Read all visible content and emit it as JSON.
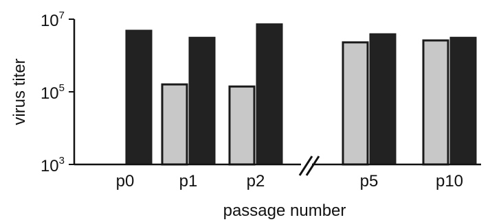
{
  "chart_data": {
    "type": "bar",
    "categories": [
      "p0",
      "p1",
      "p2",
      "p5",
      "p10"
    ],
    "series": [
      {
        "values": [
          null,
          160000,
          140000,
          2300000,
          2600000
        ],
        "color": "#c8c8c8"
      },
      {
        "values": [
          5000000,
          3200000,
          7500000,
          4000000,
          3200000
        ],
        "color": "#222222"
      }
    ],
    "xlabel": "passage number",
    "ylabel": "virus titer",
    "yscale": "log",
    "ylim": [
      1000,
      10000000
    ],
    "yticks": [
      {
        "base": "10",
        "exp": "3",
        "value": 1000
      },
      {
        "base": "10",
        "exp": "5",
        "value": 100000
      },
      {
        "base": "10",
        "exp": "7",
        "value": 10000000
      }
    ],
    "axis_break": {
      "between": [
        "p2",
        "p5"
      ],
      "symbol": "//"
    },
    "grid": false,
    "legend": "none"
  }
}
